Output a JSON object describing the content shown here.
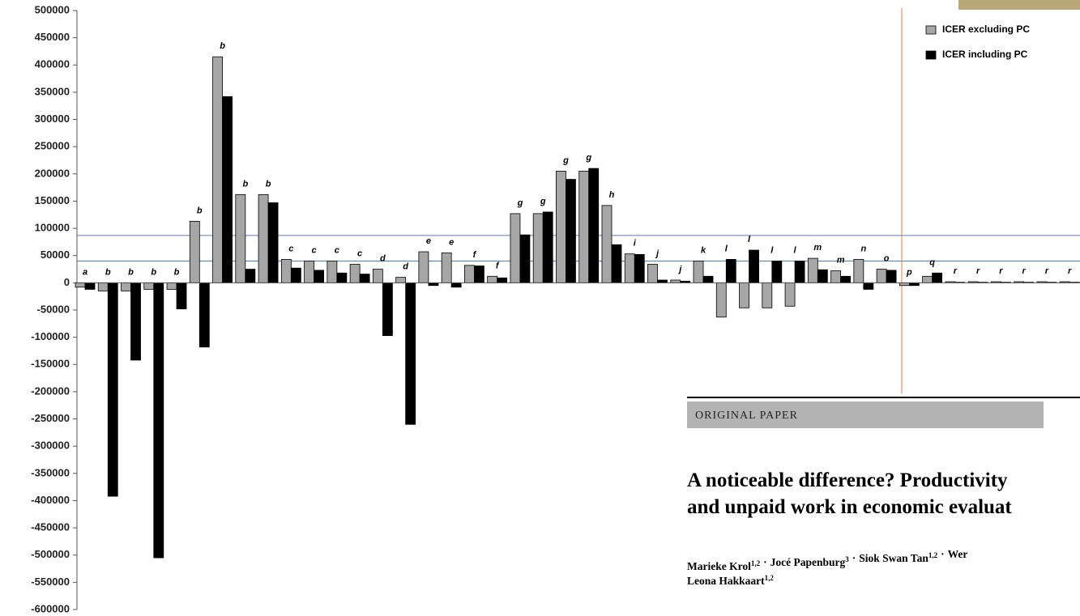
{
  "chart_data": {
    "type": "bar",
    "categories": [
      "a",
      "b",
      "b",
      "b",
      "b",
      "b",
      "b",
      "b",
      "b",
      "c",
      "c",
      "c",
      "c",
      "d",
      "d",
      "e",
      "e",
      "f",
      "f",
      "g",
      "g",
      "g",
      "g",
      "h",
      "i",
      "j",
      "j",
      "k",
      "l",
      "l",
      "l",
      "l",
      "m",
      "m",
      "n",
      "o",
      "p",
      "q",
      "r",
      "r",
      "r",
      "r",
      "r",
      "r"
    ],
    "series": [
      {
        "name": "ICER excluding PC",
        "color": "#a6a6a6",
        "values": [
          -8000,
          -15000,
          -15000,
          -12000,
          -12000,
          113000,
          415000,
          162000,
          162000,
          43000,
          40000,
          40000,
          34000,
          25000,
          10000,
          57000,
          55000,
          32000,
          12000,
          127000,
          127000,
          205000,
          205000,
          142000,
          53000,
          34000,
          5000,
          40000,
          -63000,
          -46000,
          -46000,
          -43000,
          45000,
          22000,
          43000,
          25000,
          -5000,
          12000,
          2000,
          2000,
          2000,
          2000,
          2000,
          2000
        ]
      },
      {
        "name": "ICER including PC",
        "color": "#000000",
        "values": [
          -12000,
          -392000,
          -142000,
          -505000,
          -48000,
          -118000,
          342000,
          25000,
          147000,
          27000,
          23000,
          18000,
          16000,
          -97000,
          -260000,
          -5000,
          -8000,
          31000,
          9000,
          88000,
          130000,
          190000,
          210000,
          70000,
          52000,
          5000,
          3000,
          12000,
          43000,
          60000,
          40000,
          40000,
          24000,
          12000,
          -12000,
          23000,
          -5000,
          18000,
          1000,
          1000,
          1000,
          1000,
          1000,
          1000
        ]
      }
    ],
    "ylim": [
      -600000,
      500000
    ],
    "yticks": [
      500000,
      450000,
      400000,
      350000,
      300000,
      250000,
      200000,
      150000,
      100000,
      50000,
      0,
      -50000,
      -100000,
      -150000,
      -200000,
      -250000,
      -300000,
      -350000,
      -400000,
      -450000,
      -500000,
      -550000,
      -600000
    ],
    "reference_lines": [
      {
        "value": 87000,
        "color": "#4f81bd"
      },
      {
        "value": 40000,
        "color": "#4f81bd"
      }
    ],
    "legend": "top-right"
  },
  "paper": {
    "label": "ORIGINAL PAPER",
    "title_lines": [
      "A noticeable difference? Productivity",
      "and unpaid work in economic evaluat"
    ],
    "separator": "·",
    "author_lines": [
      [
        {
          "name": "Marieke Krol",
          "sup": "1,2"
        },
        {
          "name": "Jocé Papenburg",
          "sup": "3"
        },
        {
          "name": "Siok Swan Tan",
          "sup": "1,2"
        },
        {
          "name": "Wer",
          "sup": null
        }
      ],
      [
        {
          "name": "Leona Hakkaart",
          "sup": "1,2"
        }
      ]
    ]
  }
}
